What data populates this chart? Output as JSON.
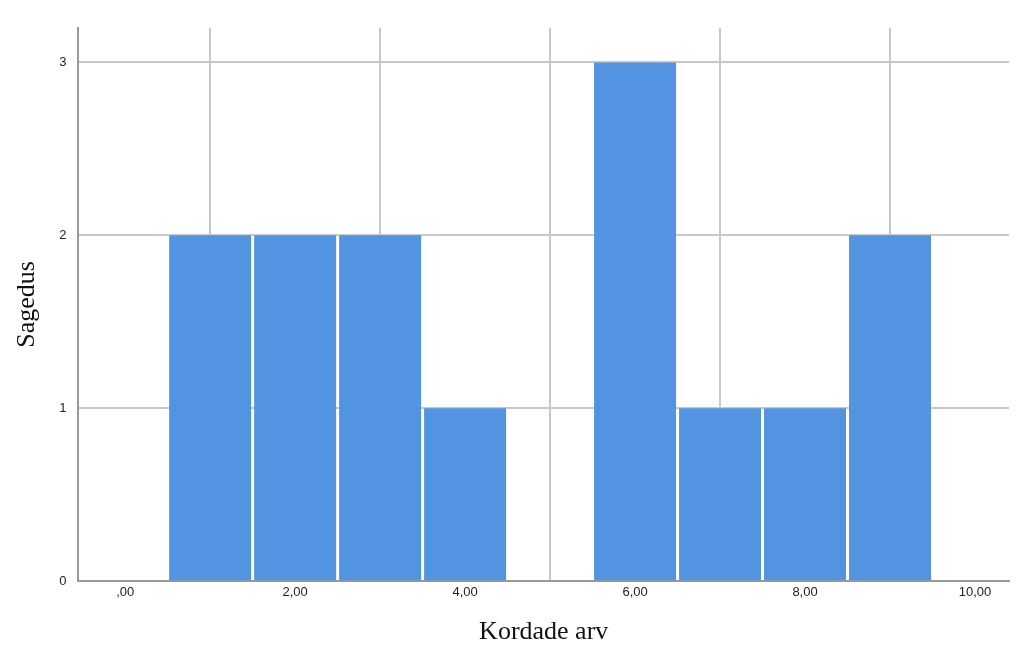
{
  "chart_data": {
    "type": "histogram",
    "xlabel": "Kordade arv",
    "ylabel": "Sagedus",
    "bins": [
      0.5,
      1.5,
      2.5,
      3.5,
      4.5,
      5.5,
      6.5,
      7.5,
      8.5,
      9.5
    ],
    "values": [
      2,
      2,
      2,
      1,
      0,
      3,
      1,
      1,
      2
    ],
    "color": "#5294e2",
    "xlim": [
      -0.55,
      10.4
    ],
    "xticks": [
      {
        "value": 0,
        "label": ",00"
      },
      {
        "value": 2,
        "label": "2,00"
      },
      {
        "value": 4,
        "label": "4,00"
      },
      {
        "value": 6,
        "label": "6,00"
      },
      {
        "value": 8,
        "label": "8,00"
      },
      {
        "value": 10,
        "label": "10,00"
      }
    ],
    "ylim": [
      0,
      3.2
    ],
    "yticks": [
      0,
      1,
      2,
      3
    ],
    "grid": true,
    "legend": false
  }
}
